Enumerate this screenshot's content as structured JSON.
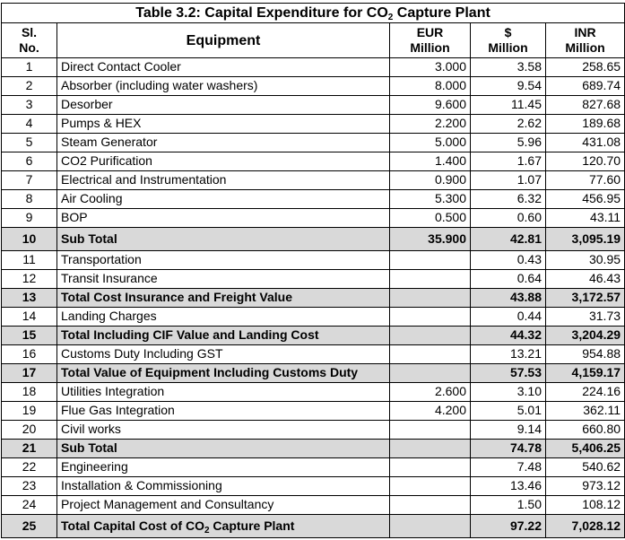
{
  "table": {
    "title": {
      "text": "Table 3.2: Capital Expenditure for CO",
      "sub": "2",
      "tail": " Capture Plant"
    },
    "headers": {
      "sl_line1": "Sl.",
      "sl_line2": "No.",
      "equipment": "Equipment",
      "eur_line1": "EUR",
      "eur_line2": "Million",
      "usd_line1": "$",
      "usd_line2": "Million",
      "inr_line1": "INR",
      "inr_line2": "Million"
    },
    "rows": [
      {
        "sl": "1",
        "eq": "Direct Contact Cooler",
        "eur": "3.000",
        "usd": "3.58",
        "inr": "258.65"
      },
      {
        "sl": "2",
        "eq": "Absorber (including water washers)",
        "eur": "8.000",
        "usd": "9.54",
        "inr": "689.74"
      },
      {
        "sl": "3",
        "eq": "Desorber",
        "eur": "9.600",
        "usd": "11.45",
        "inr": "827.68"
      },
      {
        "sl": "4",
        "eq": "Pumps & HEX",
        "eur": "2.200",
        "usd": "2.62",
        "inr": "189.68"
      },
      {
        "sl": "5",
        "eq": "Steam Generator",
        "eur": "5.000",
        "usd": "5.96",
        "inr": "431.08"
      },
      {
        "sl": "6",
        "eq": "CO2 Purification",
        "eur": "1.400",
        "usd": "1.67",
        "inr": "120.70"
      },
      {
        "sl": "7",
        "eq": "Electrical and Instrumentation",
        "eur": "0.900",
        "usd": "1.07",
        "inr": "77.60"
      },
      {
        "sl": "8",
        "eq": "Air Cooling",
        "eur": "5.300",
        "usd": "6.32",
        "inr": "456.95"
      },
      {
        "sl": "9",
        "eq": "BOP",
        "eur": "0.500",
        "usd": "0.60",
        "inr": "43.11"
      },
      {
        "sl": "10",
        "eq": "Sub Total",
        "eur": "35.900",
        "usd": "42.81",
        "inr": "3,095.19"
      },
      {
        "sl": "11",
        "eq": "Transportation",
        "eur": "",
        "usd": "0.43",
        "inr": "30.95"
      },
      {
        "sl": "12",
        "eq": "Transit Insurance",
        "eur": "",
        "usd": "0.64",
        "inr": "46.43"
      },
      {
        "sl": "13",
        "eq": "Total Cost Insurance and Freight Value",
        "eur": "",
        "usd": "43.88",
        "inr": "3,172.57"
      },
      {
        "sl": "14",
        "eq": "Landing Charges",
        "eur": "",
        "usd": "0.44",
        "inr": "31.73"
      },
      {
        "sl": "15",
        "eq": "Total Including CIF Value and Landing Cost",
        "eur": "",
        "usd": "44.32",
        "inr": "3,204.29"
      },
      {
        "sl": "16",
        "eq": "Customs Duty Including GST",
        "eur": "",
        "usd": "13.21",
        "inr": "954.88"
      },
      {
        "sl": "17",
        "eq": "Total Value of Equipment Including Customs Duty",
        "eur": "",
        "usd": "57.53",
        "inr": "4,159.17"
      },
      {
        "sl": "18",
        "eq": "Utilities Integration",
        "eur": "2.600",
        "usd": "3.10",
        "inr": "224.16"
      },
      {
        "sl": "19",
        "eq": "Flue Gas Integration",
        "eur": "4.200",
        "usd": "5.01",
        "inr": "362.11"
      },
      {
        "sl": "20",
        "eq": "Civil works",
        "eur": "",
        "usd": "9.14",
        "inr": "660.80"
      },
      {
        "sl": "21",
        "eq": "Sub Total",
        "eur": "",
        "usd": "74.78",
        "inr": "5,406.25"
      },
      {
        "sl": "22",
        "eq": "Engineering",
        "eur": "",
        "usd": "7.48",
        "inr": "540.62"
      },
      {
        "sl": "23",
        "eq": "Installation & Commissioning",
        "eur": "",
        "usd": "13.46",
        "inr": "973.12"
      },
      {
        "sl": "24",
        "eq": "Project Management and Consultancy",
        "eur": "",
        "usd": "1.50",
        "inr": "108.12"
      },
      {
        "sl": "25",
        "eq": "Total Capital Cost of CO",
        "eq_sub": "2",
        "eq_tail": " Capture Plant",
        "eur": "",
        "usd": "97.22",
        "inr": "7,028.12"
      }
    ]
  }
}
